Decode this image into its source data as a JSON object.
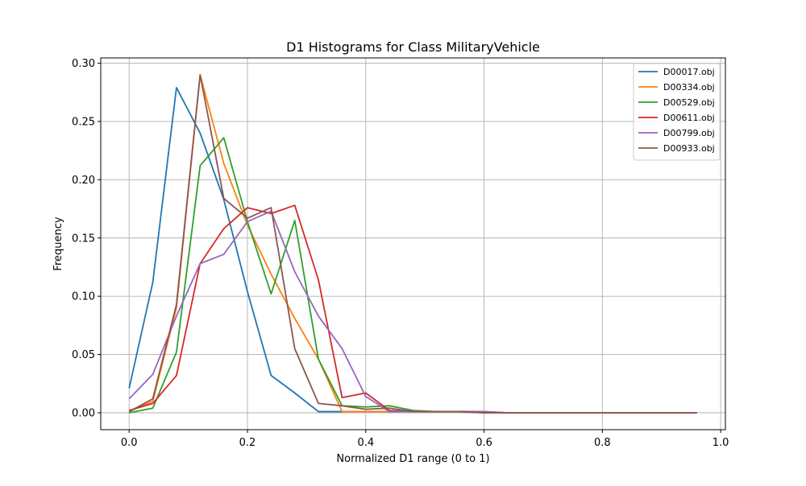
{
  "chart_data": {
    "type": "line",
    "title": "D1 Histograms for Class MilitaryVehicle",
    "xlabel": "Normalized D1 range (0 to 1)",
    "ylabel": "Frequency",
    "xlim": [
      -0.048,
      1.008
    ],
    "ylim": [
      -0.0145,
      0.3045
    ],
    "xticks": [
      0.0,
      0.2,
      0.4,
      0.6,
      0.8,
      1.0
    ],
    "xtick_labels": [
      "0.0",
      "0.2",
      "0.4",
      "0.6",
      "0.8",
      "1.0"
    ],
    "yticks": [
      0.0,
      0.05,
      0.1,
      0.15,
      0.2,
      0.25,
      0.3
    ],
    "ytick_labels": [
      "0.00",
      "0.05",
      "0.10",
      "0.15",
      "0.20",
      "0.25",
      "0.30"
    ],
    "grid": true,
    "legend_position": "top-right",
    "x": [
      0.0,
      0.04,
      0.08,
      0.12,
      0.16,
      0.2,
      0.24,
      0.28,
      0.32,
      0.36,
      0.4,
      0.44,
      0.48,
      0.52,
      0.56,
      0.6,
      0.64,
      0.68,
      0.72,
      0.76,
      0.8,
      0.84,
      0.88,
      0.92,
      0.96
    ],
    "series": [
      {
        "name": "D00017.obj",
        "color": "#1f77b4",
        "values": [
          0.021,
          0.112,
          0.279,
          0.24,
          0.183,
          0.104,
          0.032,
          0.017,
          0.001,
          0.001,
          0.001,
          0.001,
          0.001,
          0.001,
          0.001,
          0.0,
          0.0,
          0.0,
          0.0,
          0.0,
          0.0,
          0.0,
          0.0,
          0.0,
          0.0
        ]
      },
      {
        "name": "D00334.obj",
        "color": "#ff7f0e",
        "values": [
          0.001,
          0.01,
          0.09,
          0.29,
          0.214,
          0.161,
          0.119,
          0.081,
          0.046,
          0.001,
          0.001,
          0.001,
          0.001,
          0.001,
          0.001,
          0.0,
          0.0,
          0.0,
          0.0,
          0.0,
          0.0,
          0.0,
          0.0,
          0.0,
          0.0
        ]
      },
      {
        "name": "D00529.obj",
        "color": "#2ca02c",
        "values": [
          0.0,
          0.004,
          0.052,
          0.212,
          0.236,
          0.164,
          0.102,
          0.165,
          0.046,
          0.006,
          0.005,
          0.006,
          0.002,
          0.001,
          0.001,
          0.0,
          0.0,
          0.0,
          0.0,
          0.0,
          0.0,
          0.0,
          0.0,
          0.0,
          0.0
        ]
      },
      {
        "name": "D00611.obj",
        "color": "#d62728",
        "values": [
          0.002,
          0.008,
          0.032,
          0.128,
          0.158,
          0.176,
          0.171,
          0.178,
          0.114,
          0.013,
          0.017,
          0.002,
          0.001,
          0.001,
          0.001,
          0.001,
          0.0,
          0.0,
          0.0,
          0.0,
          0.0,
          0.0,
          0.0,
          0.0,
          0.0
        ]
      },
      {
        "name": "D00799.obj",
        "color": "#9467bd",
        "values": [
          0.012,
          0.033,
          0.083,
          0.128,
          0.136,
          0.164,
          0.173,
          0.121,
          0.083,
          0.055,
          0.014,
          0.001,
          0.001,
          0.001,
          0.001,
          0.001,
          0.0,
          0.0,
          0.0,
          0.0,
          0.0,
          0.0,
          0.0,
          0.0,
          0.0
        ]
      },
      {
        "name": "D00933.obj",
        "color": "#8c564b",
        "values": [
          0.001,
          0.012,
          0.093,
          0.29,
          0.184,
          0.167,
          0.176,
          0.055,
          0.008,
          0.006,
          0.003,
          0.004,
          0.001,
          0.001,
          0.001,
          0.0,
          0.0,
          0.0,
          0.0,
          0.0,
          0.0,
          0.0,
          0.0,
          0.0,
          0.0
        ]
      }
    ]
  }
}
